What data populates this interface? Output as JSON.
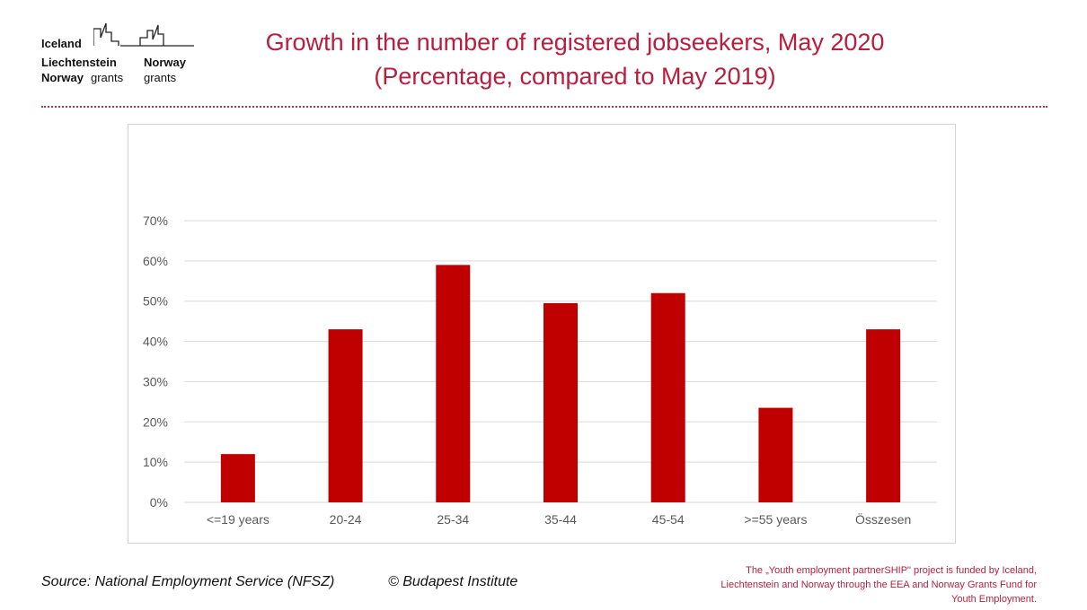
{
  "logo": {
    "line1": "Iceland",
    "line2a": "Liechtenstein",
    "line2b": "Norway",
    "line3a": "Norway",
    "line3b": "grants",
    "line3c": "grants"
  },
  "title": {
    "line1": "Growth in the number of registered jobseekers, May 2020",
    "line2": "(Percentage, compared to May 2019)"
  },
  "footer": {
    "source": "Source: National Employment Service (NFSZ)",
    "copyright": "© Budapest Institute",
    "funding_lines": [
      "The „Youth employment partnerSHIP\" project is funded by Iceland,",
      "Liechtenstein and Norway through the EEA and Norway Grants Fund for",
      "Youth Employment."
    ]
  },
  "colors": {
    "bar": "#c00000",
    "title": "#b81e3e",
    "grid": "#d9d9d9"
  },
  "chart_data": {
    "type": "bar",
    "categories": [
      "<=19 years",
      "20-24",
      "25-34",
      "35-44",
      "45-54",
      ">=55 years",
      "Összesen"
    ],
    "values": [
      12,
      43,
      59,
      49.5,
      52,
      23.5,
      43
    ],
    "yticks": [
      "0%",
      "10%",
      "20%",
      "30%",
      "40%",
      "50%",
      "60%",
      "70%"
    ],
    "ylim": [
      0,
      70
    ],
    "grid": true,
    "legend": "none",
    "title": "",
    "xlabel": "",
    "ylabel": ""
  }
}
